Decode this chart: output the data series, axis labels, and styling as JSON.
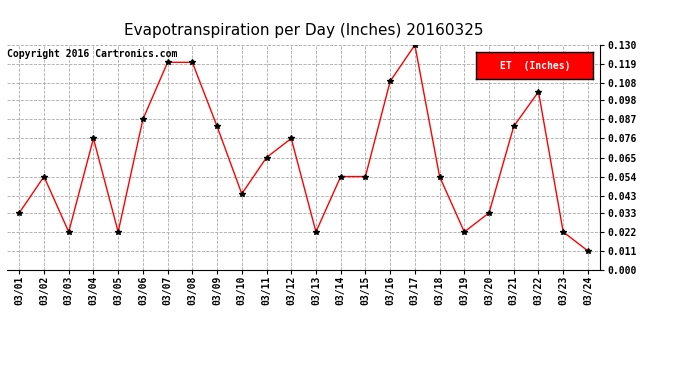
{
  "title": "Evapotranspiration per Day (Inches) 20160325",
  "copyright": "Copyright 2016 Cartronics.com",
  "legend_label": "ET  (Inches)",
  "dates": [
    "03/01",
    "03/02",
    "03/03",
    "03/04",
    "03/05",
    "03/06",
    "03/07",
    "03/08",
    "03/09",
    "03/10",
    "03/11",
    "03/12",
    "03/13",
    "03/14",
    "03/15",
    "03/16",
    "03/17",
    "03/18",
    "03/19",
    "03/20",
    "03/21",
    "03/22",
    "03/23",
    "03/24"
  ],
  "values": [
    0.033,
    0.054,
    0.022,
    0.076,
    0.022,
    0.087,
    0.12,
    0.12,
    0.083,
    0.044,
    0.065,
    0.076,
    0.022,
    0.054,
    0.054,
    0.109,
    0.13,
    0.054,
    0.022,
    0.033,
    0.083,
    0.103,
    0.022,
    0.011
  ],
  "ylim": [
    0.0,
    0.13
  ],
  "yticks": [
    0.0,
    0.011,
    0.022,
    0.033,
    0.043,
    0.054,
    0.065,
    0.076,
    0.087,
    0.098,
    0.108,
    0.119,
    0.13
  ],
  "line_color": "red",
  "marker": "*",
  "marker_color": "black",
  "marker_size": 4,
  "grid_color": "#aaaaaa",
  "background_color": "white",
  "legend_bg": "red",
  "legend_text_color": "white",
  "title_fontsize": 11,
  "copyright_fontsize": 7,
  "tick_fontsize": 7,
  "ytick_fontsize": 7
}
